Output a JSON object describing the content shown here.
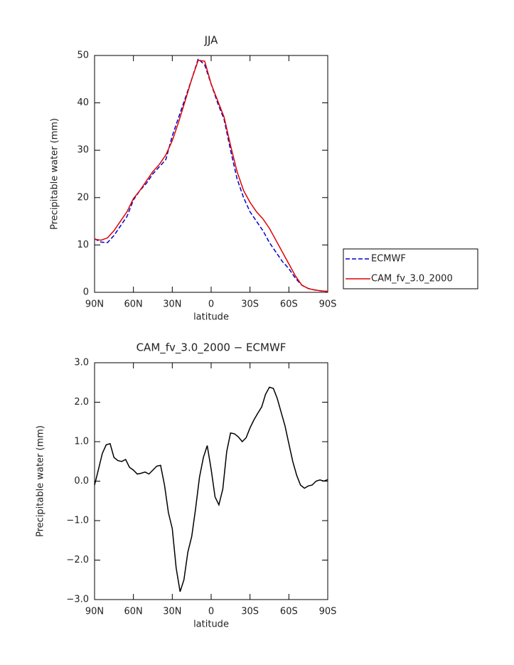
{
  "chart_data": [
    {
      "type": "line",
      "title": "JJA",
      "xlabel": "latitude",
      "ylabel": "Precipitable water (mm)",
      "x": [
        90,
        85,
        80,
        75,
        70,
        65,
        60,
        55,
        50,
        45,
        40,
        35,
        30,
        25,
        20,
        15,
        10,
        5,
        0,
        -5,
        -10,
        -15,
        -20,
        -25,
        -30,
        -35,
        -40,
        -45,
        -50,
        -55,
        -60,
        -65,
        -70,
        -75,
        -80,
        -85,
        -90
      ],
      "series": [
        {
          "name": "ECMWF",
          "color": "#0000cc",
          "line_style": "dashed",
          "values": [
            11.3,
            10.6,
            10.5,
            12,
            14,
            16,
            19.5,
            21.5,
            23,
            25,
            26.5,
            28,
            33,
            37,
            41,
            45,
            49.3,
            48,
            44,
            40,
            36.5,
            30,
            24,
            20,
            17,
            15,
            13,
            10.5,
            8.5,
            6.5,
            5,
            3,
            1.5,
            0.8,
            0.5,
            0.3,
            0.2
          ]
        },
        {
          "name": "CAM_fv_3.0_2000",
          "color": "#e00000",
          "line_style": "solid",
          "values": [
            11.2,
            11,
            11.5,
            13,
            15,
            17,
            19.8,
            21.5,
            23.5,
            25.5,
            27,
            29,
            32,
            36,
            40.5,
            45,
            49,
            48.8,
            44,
            40.5,
            37,
            31,
            25.5,
            21.5,
            19,
            17,
            15.5,
            13.5,
            11,
            8.5,
            6,
            3.5,
            1.5,
            0.8,
            0.5,
            0.3,
            0.2
          ]
        }
      ],
      "xlim": [
        90,
        -90
      ],
      "xticks": [
        {
          "value": 90,
          "label": "90N"
        },
        {
          "value": 60,
          "label": "60N"
        },
        {
          "value": 30,
          "label": "30N"
        },
        0,
        {
          "value": -30,
          "label": "30S"
        },
        {
          "value": -60,
          "label": "60S"
        },
        {
          "value": -90,
          "label": "90S"
        }
      ],
      "ylim": [
        0,
        50
      ],
      "yticks": [
        0,
        10,
        20,
        30,
        40,
        50
      ],
      "grid": false,
      "legend": "right"
    },
    {
      "type": "line",
      "title": "CAM_fv_3.0_2000 − ECMWF",
      "xlabel": "latitude",
      "ylabel": "Precipitable water (mm)",
      "x": [
        90,
        87,
        84,
        81,
        78,
        75,
        72,
        69,
        66,
        63,
        60,
        57,
        54,
        51,
        48,
        45,
        42,
        39,
        36,
        33,
        30,
        27,
        24,
        21,
        18,
        15,
        12,
        9,
        6,
        3,
        0,
        -3,
        -6,
        -9,
        -12,
        -15,
        -18,
        -21,
        -24,
        -27,
        -30,
        -33,
        -36,
        -39,
        -42,
        -45,
        -48,
        -51,
        -54,
        -57,
        -60,
        -63,
        -66,
        -69,
        -72,
        -75,
        -78,
        -81,
        -84,
        -87,
        -90
      ],
      "values": [
        -0.1,
        0.3,
        0.7,
        0.92,
        0.95,
        0.6,
        0.52,
        0.5,
        0.55,
        0.35,
        0.28,
        0.18,
        0.2,
        0.23,
        0.18,
        0.28,
        0.38,
        0.4,
        -0.1,
        -0.8,
        -1.2,
        -2.2,
        -2.8,
        -2.5,
        -1.8,
        -1.4,
        -0.7,
        0.1,
        0.6,
        0.9,
        0.3,
        -0.4,
        -0.6,
        -0.2,
        0.75,
        1.22,
        1.2,
        1.12,
        1.0,
        1.1,
        1.35,
        1.55,
        1.72,
        1.88,
        2.2,
        2.38,
        2.35,
        2.1,
        1.75,
        1.4,
        0.95,
        0.5,
        0.15,
        -0.1,
        -0.18,
        -0.12,
        -0.1,
        0,
        0.03,
        0,
        0.04
      ],
      "color": "#000000",
      "xlim": [
        90,
        -90
      ],
      "xticks": [
        {
          "value": 90,
          "label": "90N"
        },
        {
          "value": 60,
          "label": "60N"
        },
        {
          "value": 30,
          "label": "30N"
        },
        0,
        {
          "value": -30,
          "label": "30S"
        },
        {
          "value": -60,
          "label": "60S"
        },
        {
          "value": -90,
          "label": "90S"
        }
      ],
      "ylim": [
        -3,
        3
      ],
      "yticks": [
        {
          "value": -3,
          "label": "−3.0"
        },
        {
          "value": -2,
          "label": "−2.0"
        },
        {
          "value": -1,
          "label": "−1.0"
        },
        {
          "value": 0,
          "label": "0.0"
        },
        {
          "value": 1,
          "label": "1.0"
        },
        {
          "value": 2,
          "label": "2.0"
        },
        {
          "value": 3,
          "label": "3.0"
        }
      ],
      "grid": false
    }
  ]
}
